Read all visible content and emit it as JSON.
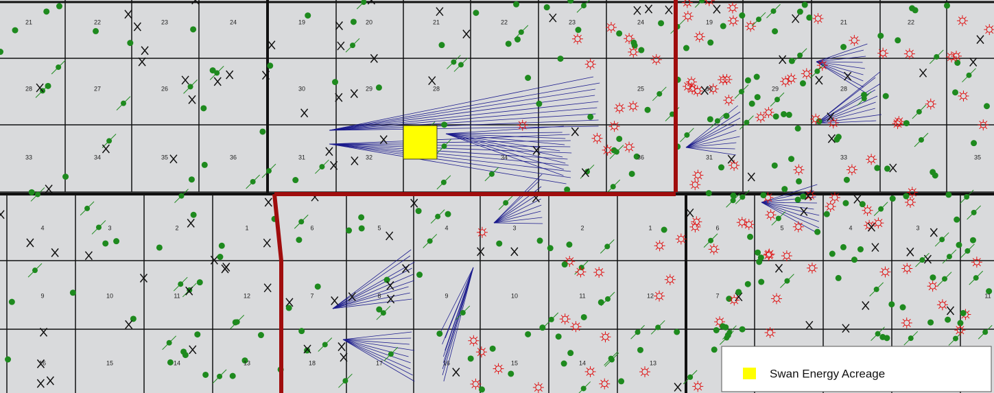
{
  "map": {
    "sections": [
      "21",
      "22",
      "23",
      "24",
      "19",
      "20",
      "21",
      "22",
      "23",
      "24",
      "19",
      "21",
      "22",
      "28",
      "27",
      "26",
      "30",
      "29",
      "28",
      "25",
      "30",
      "29",
      "28",
      "33",
      "34",
      "35",
      "36",
      "31",
      "32",
      "34",
      "36",
      "31",
      "33",
      "35",
      "4",
      "3",
      "2",
      "1",
      "6",
      "5",
      "4",
      "3",
      "2",
      "1",
      "6",
      "5",
      "4",
      "3",
      "9",
      "10",
      "11",
      "12",
      "7",
      "8",
      "9",
      "10",
      "11",
      "12",
      "7",
      "11",
      "16",
      "15",
      "14",
      "13",
      "18",
      "17",
      "16",
      "15",
      "14",
      "13"
    ],
    "legend": {
      "label": "Swan Energy Acreage",
      "color": "#ffff00"
    }
  }
}
